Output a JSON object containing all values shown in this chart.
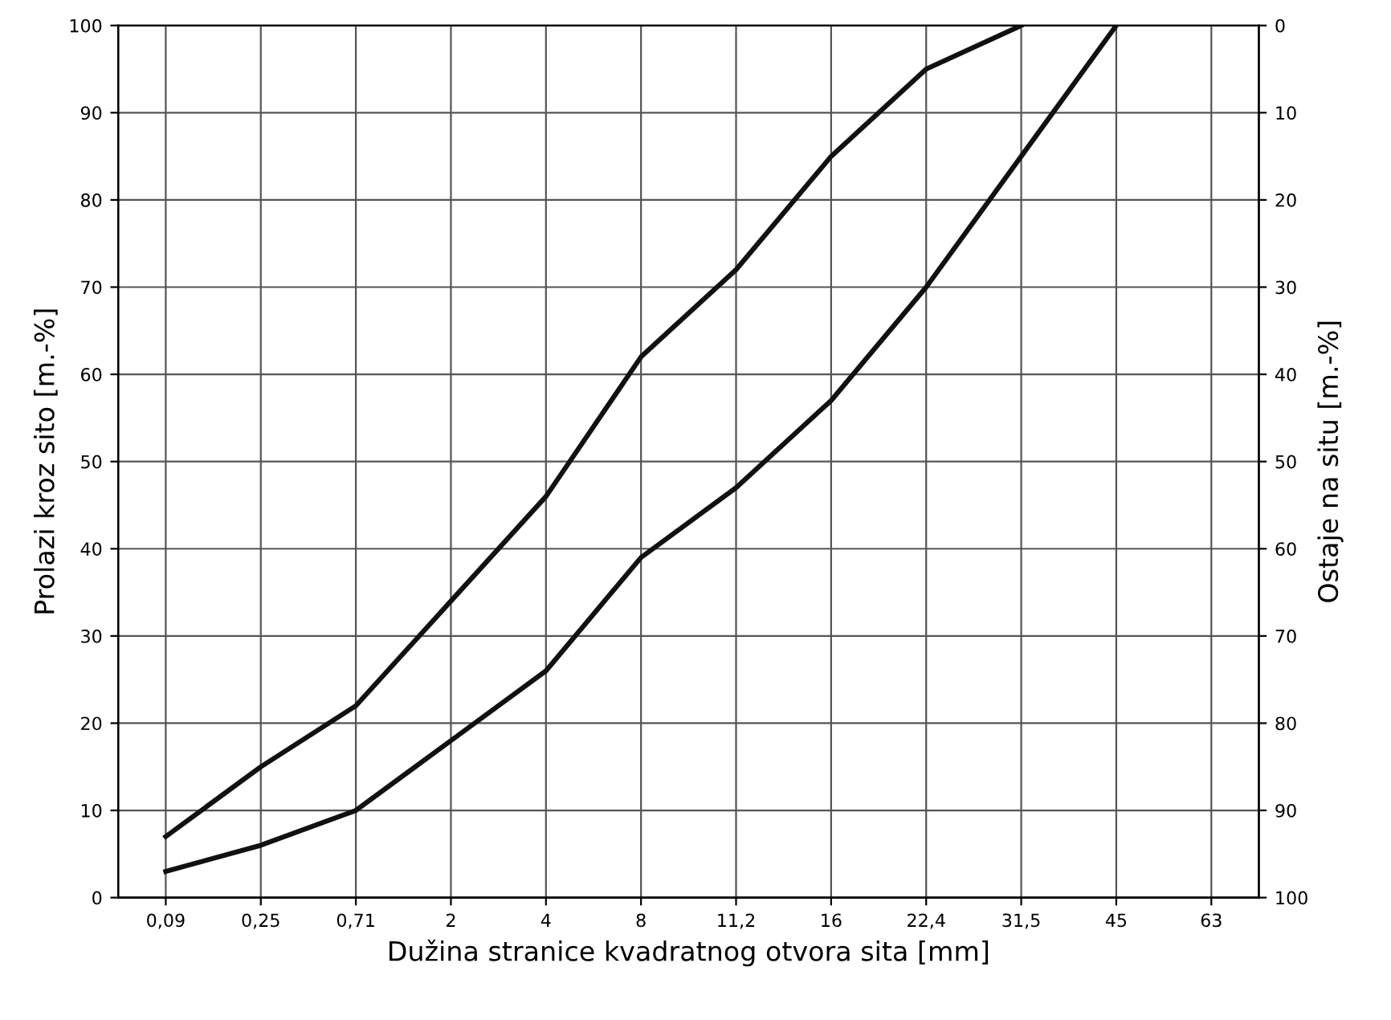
{
  "chart_data": {
    "type": "line",
    "xlabel": "Dužina stranice kvadratnog otvora sita [mm]",
    "ylabel": "Prolazi kroz sito [m.-%]",
    "y2label": "Ostaje na situ [m.-%]",
    "categories": [
      "0,09",
      "0,25",
      "0,71",
      "2",
      "4",
      "8",
      "11,2",
      "16",
      "22,4",
      "31,5",
      "45",
      "63"
    ],
    "series": [
      {
        "color": "#111111",
        "values": [
          7,
          15,
          22,
          34,
          46,
          62,
          72,
          85,
          95,
          100,
          null,
          null
        ]
      },
      {
        "color": "#111111",
        "values": [
          3,
          6,
          10,
          18,
          26,
          39,
          47,
          57,
          70,
          85,
          100,
          null
        ]
      }
    ],
    "ylim": [
      0,
      100
    ],
    "yticks": [
      0,
      10,
      20,
      30,
      40,
      50,
      60,
      70,
      80,
      90,
      100
    ],
    "y2lim": [
      100,
      0
    ],
    "y2ticks": [
      0,
      10,
      20,
      30,
      40,
      50,
      60,
      70,
      80,
      90,
      100
    ],
    "grid": true,
    "line_style": "solid"
  }
}
